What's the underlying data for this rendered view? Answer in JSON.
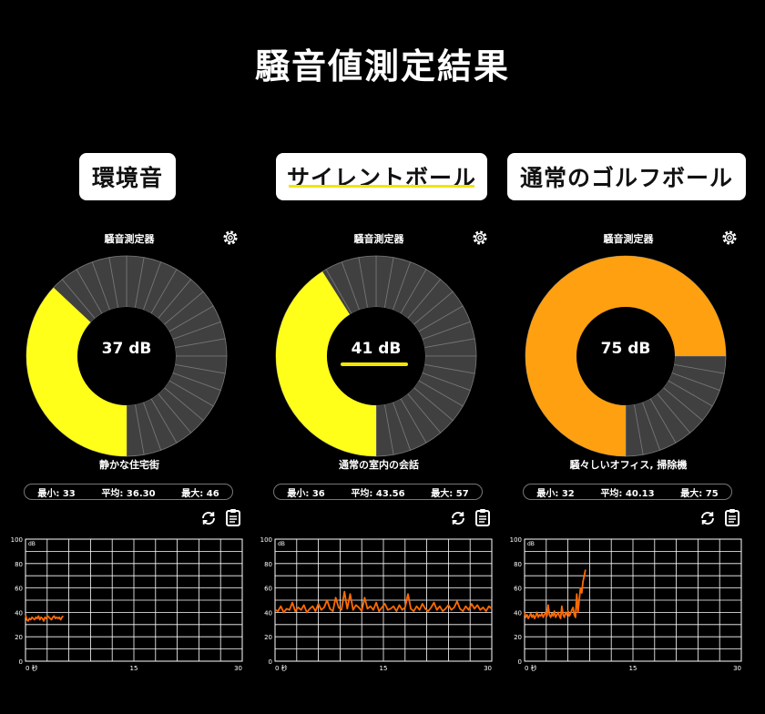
{
  "header": {
    "title": "騒音値測定結果"
  },
  "panels": [
    {
      "label": "環境音",
      "meter_title": "騒音測定器",
      "db_value": 37,
      "value_text": "37 dB",
      "level_text": "静かな住宅街",
      "stats": {
        "min": "最小: 33",
        "avg": "平均: 36.30",
        "max": "最大: 46"
      },
      "color": "#ffff1a",
      "history": [
        38,
        34,
        33,
        35,
        34,
        36,
        35,
        34,
        36,
        35,
        37,
        34,
        36,
        35,
        33,
        36,
        35,
        37,
        36,
        35,
        34,
        36,
        37,
        35,
        36,
        35,
        36,
        34,
        36,
        37
      ]
    },
    {
      "label": "サイレントボール",
      "meter_title": "騒音測定器",
      "db_value": 41,
      "value_text": "41 dB",
      "level_text": "通常の室内の会話",
      "stats": {
        "min": "最小: 36",
        "avg": "平均: 43.56",
        "max": "最大: 57"
      },
      "color": "#ffff1a",
      "history": [
        42,
        41,
        45,
        40,
        43,
        42,
        48,
        41,
        44,
        42,
        46,
        40,
        43,
        45,
        41,
        47,
        42,
        44,
        50,
        43,
        41,
        52,
        44,
        42,
        57,
        43,
        55,
        42,
        46,
        44,
        41,
        52,
        43,
        45,
        42,
        48,
        41,
        44,
        47,
        42,
        43,
        45,
        41,
        46,
        42,
        44,
        55,
        43,
        41,
        45,
        42,
        47,
        43,
        41,
        44,
        48,
        42,
        45,
        41,
        43,
        46,
        42,
        44,
        49,
        43,
        41,
        45,
        42,
        47,
        43,
        46,
        42,
        44,
        41,
        45,
        43
      ]
    },
    {
      "label": "通常のゴルフボール",
      "meter_title": "騒音測定器",
      "db_value": 75,
      "value_text": "75 dB",
      "level_text": "騒々しいオフィス, 掃除機",
      "stats": {
        "min": "最小: 32",
        "avg": "平均: 40.13",
        "max": "最大: 75"
      },
      "color": "#ffa010",
      "history": [
        40,
        36,
        38,
        35,
        37,
        39,
        36,
        38,
        35,
        37,
        40,
        36,
        38,
        37,
        39,
        36,
        38,
        40,
        37,
        46,
        38,
        36,
        39,
        37,
        41,
        36,
        38,
        40,
        37,
        35,
        45,
        38,
        36,
        40,
        38,
        41,
        37,
        39,
        42,
        44,
        38,
        36,
        55,
        40,
        50,
        60,
        56,
        65,
        70,
        75
      ]
    }
  ],
  "chart_axis": {
    "y_ticks": [
      "100",
      "80",
      "60",
      "40",
      "20",
      "0"
    ],
    "y_unit": "dB",
    "x_ticks": [
      "0 秒",
      "15",
      "30"
    ]
  }
}
